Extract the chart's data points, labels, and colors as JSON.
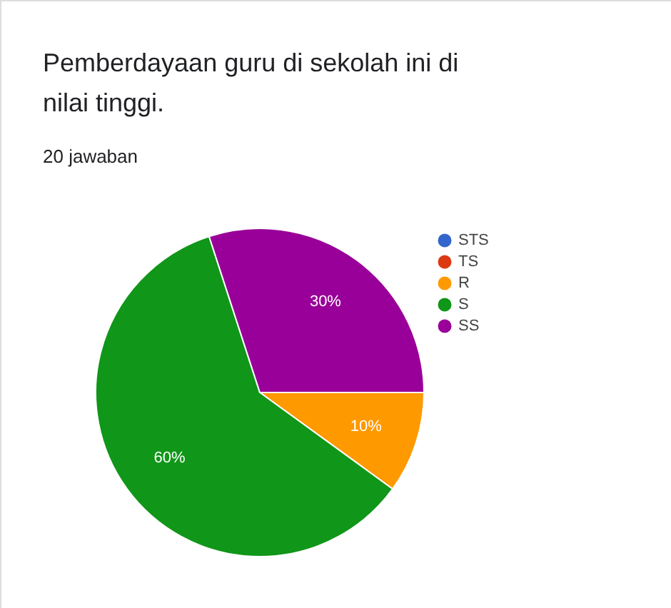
{
  "chart_data": {
    "type": "pie",
    "title": "Pemberdayaan guru di sekolah ini di nilai tinggi.",
    "subtitle": "20 jawaban",
    "categories": [
      "STS",
      "TS",
      "R",
      "S",
      "SS"
    ],
    "values": [
      0,
      0,
      10,
      60,
      30
    ],
    "colors": [
      "#3366cc",
      "#dc3912",
      "#ff9900",
      "#109618",
      "#990099"
    ],
    "value_labels": [
      null,
      null,
      "10%",
      "60%",
      "30%"
    ],
    "legend": "right"
  }
}
